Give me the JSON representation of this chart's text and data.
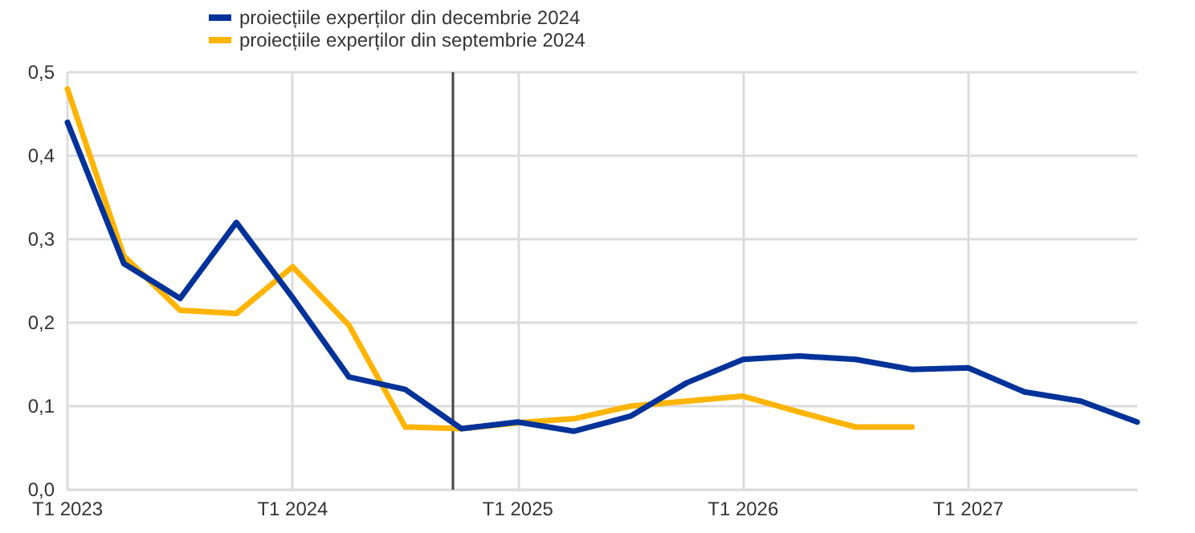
{
  "chart_data": {
    "type": "line",
    "categories": [
      "T1 2023",
      null,
      null,
      null,
      "T1 2024",
      null,
      null,
      null,
      "T1 2025",
      null,
      null,
      null,
      "T1 2026",
      null,
      null,
      null,
      "T1 2027",
      null,
      null,
      null
    ],
    "series": [
      {
        "name": "proiecțiile experților din decembrie 2024",
        "color": "#003299",
        "values": [
          0.44,
          0.271,
          0.229,
          0.32,
          0.23,
          0.135,
          0.12,
          0.073,
          0.081,
          0.07,
          0.088,
          0.128,
          0.156,
          0.16,
          0.156,
          0.144,
          0.146,
          0.117,
          0.106,
          0.081
        ]
      },
      {
        "name": "proiecțiile experților din septembrie 2024",
        "color": "#ffb400",
        "values": [
          0.48,
          0.28,
          0.215,
          0.211,
          0.267,
          0.197,
          0.075,
          0.073,
          0.08,
          0.085,
          0.1,
          0.106,
          0.112,
          0.093,
          0.075,
          0.075,
          null,
          null,
          null,
          null
        ]
      }
    ],
    "ylim": [
      0,
      0.5
    ],
    "yticks": [
      {
        "value": 0,
        "label": "0,0"
      },
      {
        "value": 0.1,
        "label": "0,1"
      },
      {
        "value": 0.2,
        "label": "0,2"
      },
      {
        "value": 0.3,
        "label": "0,3"
      },
      {
        "value": 0.4,
        "label": "0,4"
      },
      {
        "value": 0.5,
        "label": "0,5"
      }
    ],
    "grid": true,
    "legend": "top left",
    "marker": "none",
    "line_style": "solid"
  }
}
